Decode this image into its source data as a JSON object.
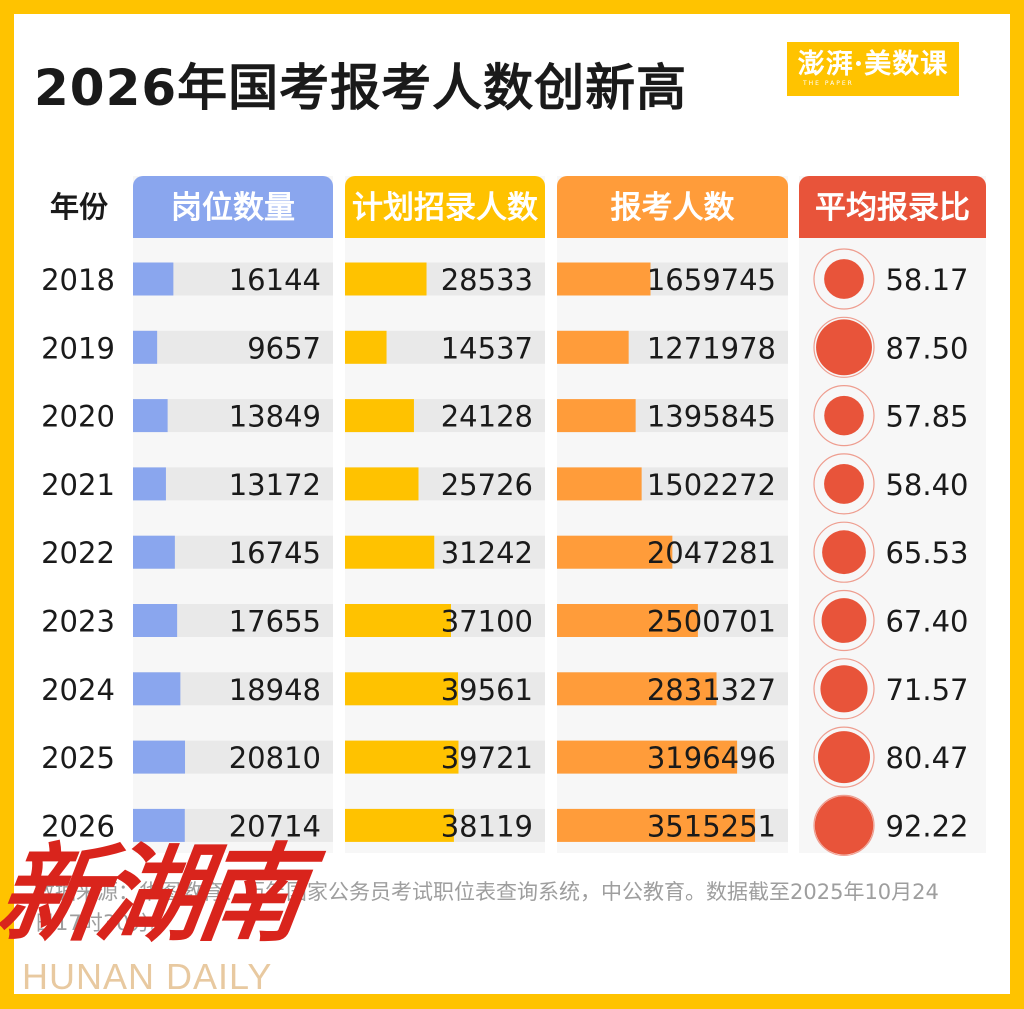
{
  "title": "2026年国考报考人数创新高",
  "logo": {
    "text": "澎湃·美数课",
    "sub": "THE PAPER"
  },
  "source": "数据来源：华图教育、历年国家公务员考试职位表查询系统，中公教育。数据截至2025年10月24日17时30分。",
  "watermark": {
    "cn": "新湖南",
    "en": "HUNAN DAILY"
  },
  "colors": {
    "positions": "#8AA6EE",
    "plan": "#FFC200",
    "applicants": "#FF9C3A",
    "ratio": "#E8543A",
    "track": "#E9E9E9",
    "background": "#FFC300"
  },
  "chart_data": {
    "type": "table",
    "row_header": "年份",
    "columns": [
      "岗位数量",
      "计划招录人数",
      "报考人数",
      "平均报录比"
    ],
    "categories": [
      "2018",
      "2019",
      "2020",
      "2021",
      "2022",
      "2023",
      "2024",
      "2025",
      "2026"
    ],
    "series": [
      {
        "name": "岗位数量",
        "values": [
          16144,
          9657,
          13849,
          13172,
          16745,
          17655,
          18948,
          20810,
          20714
        ],
        "max": 80000
      },
      {
        "name": "计划招录人数",
        "values": [
          28533,
          14537,
          24128,
          25726,
          31242,
          37100,
          39561,
          39721,
          38119
        ],
        "max": 70000
      },
      {
        "name": "报考人数",
        "values": [
          1659745,
          1271978,
          1395845,
          1502272,
          2047281,
          2500701,
          2831327,
          3196496,
          3515251
        ],
        "max": 4100000
      },
      {
        "name": "平均报录比",
        "values": [
          "58.17",
          "87.50",
          "57.85",
          "58.40",
          "65.53",
          "67.40",
          "71.57",
          "80.47",
          "92.22"
        ]
      }
    ]
  }
}
